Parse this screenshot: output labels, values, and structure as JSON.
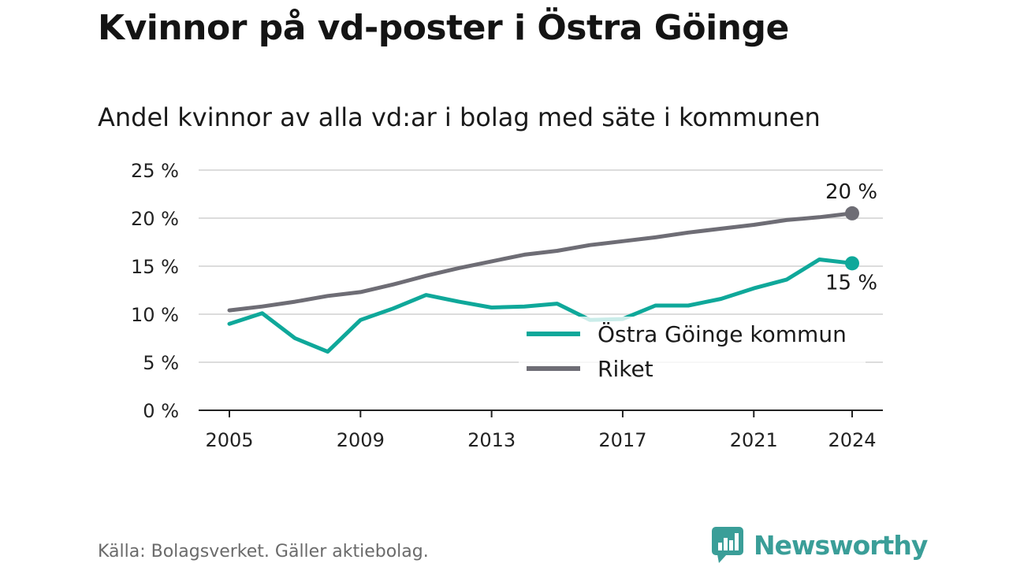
{
  "title": "Kvinnor på vd-poster i Östra Göinge",
  "subtitle": "Andel kvinnor av alla vd:ar i bolag med säte i kommunen",
  "source": "Källa: Bolagsverket. Gäller aktiebolag.",
  "brand": {
    "name": "Newsworthy",
    "icon": "newsworthy-logo-icon",
    "color": "#3a9e98"
  },
  "chart_data": {
    "type": "line",
    "x": [
      2005,
      2006,
      2007,
      2008,
      2009,
      2010,
      2011,
      2012,
      2013,
      2014,
      2015,
      2016,
      2017,
      2018,
      2019,
      2020,
      2021,
      2022,
      2023,
      2024
    ],
    "series": [
      {
        "name": "Östra Göinge kommun",
        "color": "#0fa89a",
        "values": [
          9.0,
          10.1,
          7.5,
          6.1,
          9.4,
          10.6,
          12.0,
          11.3,
          10.7,
          10.8,
          11.1,
          9.4,
          9.5,
          10.9,
          10.9,
          11.6,
          12.7,
          13.6,
          15.7,
          15.3
        ]
      },
      {
        "name": "Riket",
        "color": "#6e6d75",
        "values": [
          10.4,
          10.8,
          11.3,
          11.9,
          12.3,
          13.1,
          14.0,
          14.8,
          15.5,
          16.2,
          16.6,
          17.2,
          17.6,
          18.0,
          18.5,
          18.9,
          19.3,
          19.8,
          20.1,
          20.5
        ]
      }
    ],
    "end_labels": {
      "Östra Göinge kommun": "15 %",
      "Riket": "20 %"
    },
    "ylim": [
      0,
      25
    ],
    "y_ticks": [
      0,
      5,
      10,
      15,
      20,
      25
    ],
    "y_tick_labels": [
      "0 %",
      "5 %",
      "10 %",
      "15 %",
      "20 %",
      "25 %"
    ],
    "x_ticks": [
      2005,
      2009,
      2013,
      2017,
      2021,
      2024
    ],
    "x_tick_labels": [
      "2005",
      "2009",
      "2013",
      "2017",
      "2021",
      "2024"
    ],
    "grid": true,
    "legend_position": "inside-bottom-right",
    "xlabel": "",
    "ylabel": ""
  }
}
